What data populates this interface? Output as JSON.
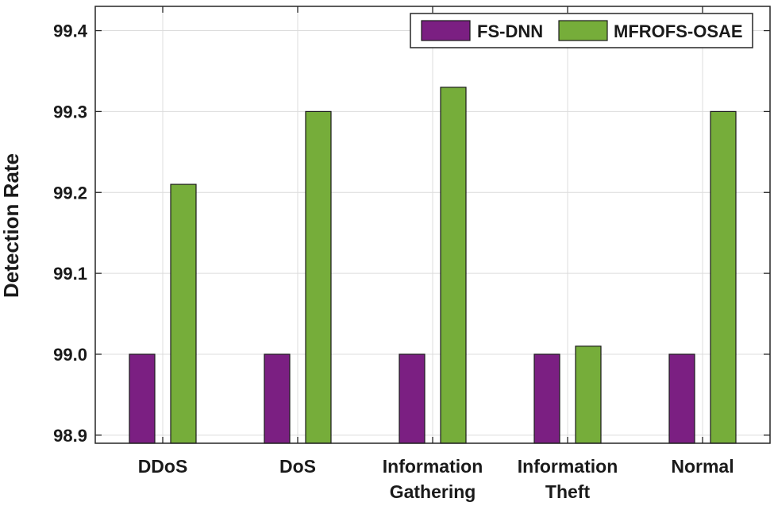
{
  "chart_data": {
    "type": "bar",
    "title": "",
    "xlabel": "",
    "ylabel": "Detection Rate",
    "categories": [
      [
        "DDoS"
      ],
      [
        "DoS"
      ],
      [
        "Information",
        "Gathering"
      ],
      [
        "Information",
        "Theft"
      ],
      [
        "Normal"
      ]
    ],
    "series": [
      {
        "name": "FS-DNN",
        "color": "#7b1f82",
        "values": [
          99.0,
          99.0,
          99.0,
          99.0,
          99.0
        ]
      },
      {
        "name": "MFROFS-OSAE",
        "color": "#76ad3a",
        "values": [
          99.21,
          99.3,
          99.33,
          99.01,
          99.3
        ]
      }
    ],
    "ylim": [
      98.89,
      99.43
    ],
    "yticks": [
      "98.9",
      "99.0",
      "99.1",
      "99.2",
      "99.3",
      "99.4"
    ],
    "grid": true,
    "legend": "top-right, horizontal"
  }
}
